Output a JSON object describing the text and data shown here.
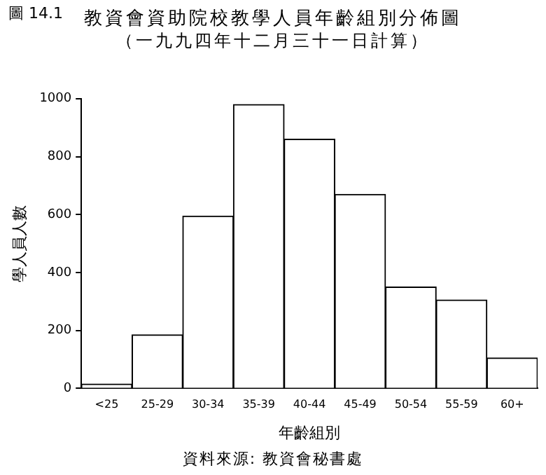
{
  "chart_data": {
    "type": "bar",
    "title": "教資會資助院校教學人員年齡組別分佈圖",
    "subtitle": "（一九九四年十二月三十一日計算）",
    "xlabel": "年齡組別",
    "ylabel": "學人員人數",
    "annotations": [
      "圖 14.1",
      "資料來源: 教資會秘書處"
    ],
    "categories": [
      "<25",
      "25-29",
      "30-34",
      "35-39",
      "40-44",
      "45-49",
      "50-54",
      "55-59",
      "60+"
    ],
    "values": [
      15,
      185,
      595,
      980,
      860,
      670,
      350,
      305,
      105
    ],
    "color": "#ffffff",
    "ylim": [
      0,
      1000
    ],
    "yticks": [
      0,
      200,
      400,
      600,
      800,
      1000
    ],
    "grid": false,
    "legend": false
  }
}
